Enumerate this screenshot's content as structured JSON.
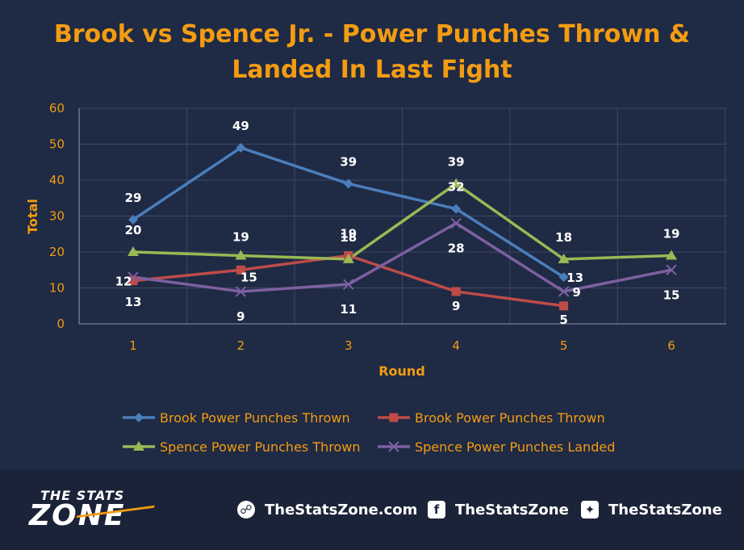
{
  "chart_data": {
    "type": "line",
    "title_lines": [
      "Brook vs Spence Jr. - Power Punches Thrown &",
      "Landed In Last Fight"
    ],
    "xlabel": "Round",
    "ylabel": "Total",
    "ylim": [
      0,
      60
    ],
    "yticks": [
      0,
      10,
      20,
      30,
      40,
      50,
      60
    ],
    "categories": [
      "1",
      "2",
      "3",
      "4",
      "5",
      "6"
    ],
    "grid": true,
    "legend_position": "bottom",
    "series": [
      {
        "name": "Brook Power Punches Thrown",
        "color": "#4a7ebb",
        "marker": "diamond",
        "values": [
          29,
          49,
          39,
          32,
          13,
          null
        ]
      },
      {
        "name": "Brook Power Punches Thrown",
        "color": "#be4b48",
        "marker": "square",
        "values": [
          12,
          15,
          19,
          9,
          5,
          null
        ]
      },
      {
        "name": "Spence Power Punches Thrown",
        "color": "#98b954",
        "marker": "triangle",
        "values": [
          20,
          19,
          18,
          39,
          18,
          19
        ]
      },
      {
        "name": "Spence Power Punches Landed",
        "color": "#7d60a0",
        "marker": "x",
        "values": [
          13,
          9,
          11,
          28,
          9,
          15
        ]
      }
    ]
  },
  "footer": {
    "logo_top": "THE STATS",
    "logo_bottom": "ZONE",
    "website": "TheStatsZone.com",
    "facebook": "TheStatsZone",
    "twitter": "TheStatsZone"
  },
  "icons": [
    "globe-icon",
    "facebook-icon",
    "twitter-icon"
  ]
}
